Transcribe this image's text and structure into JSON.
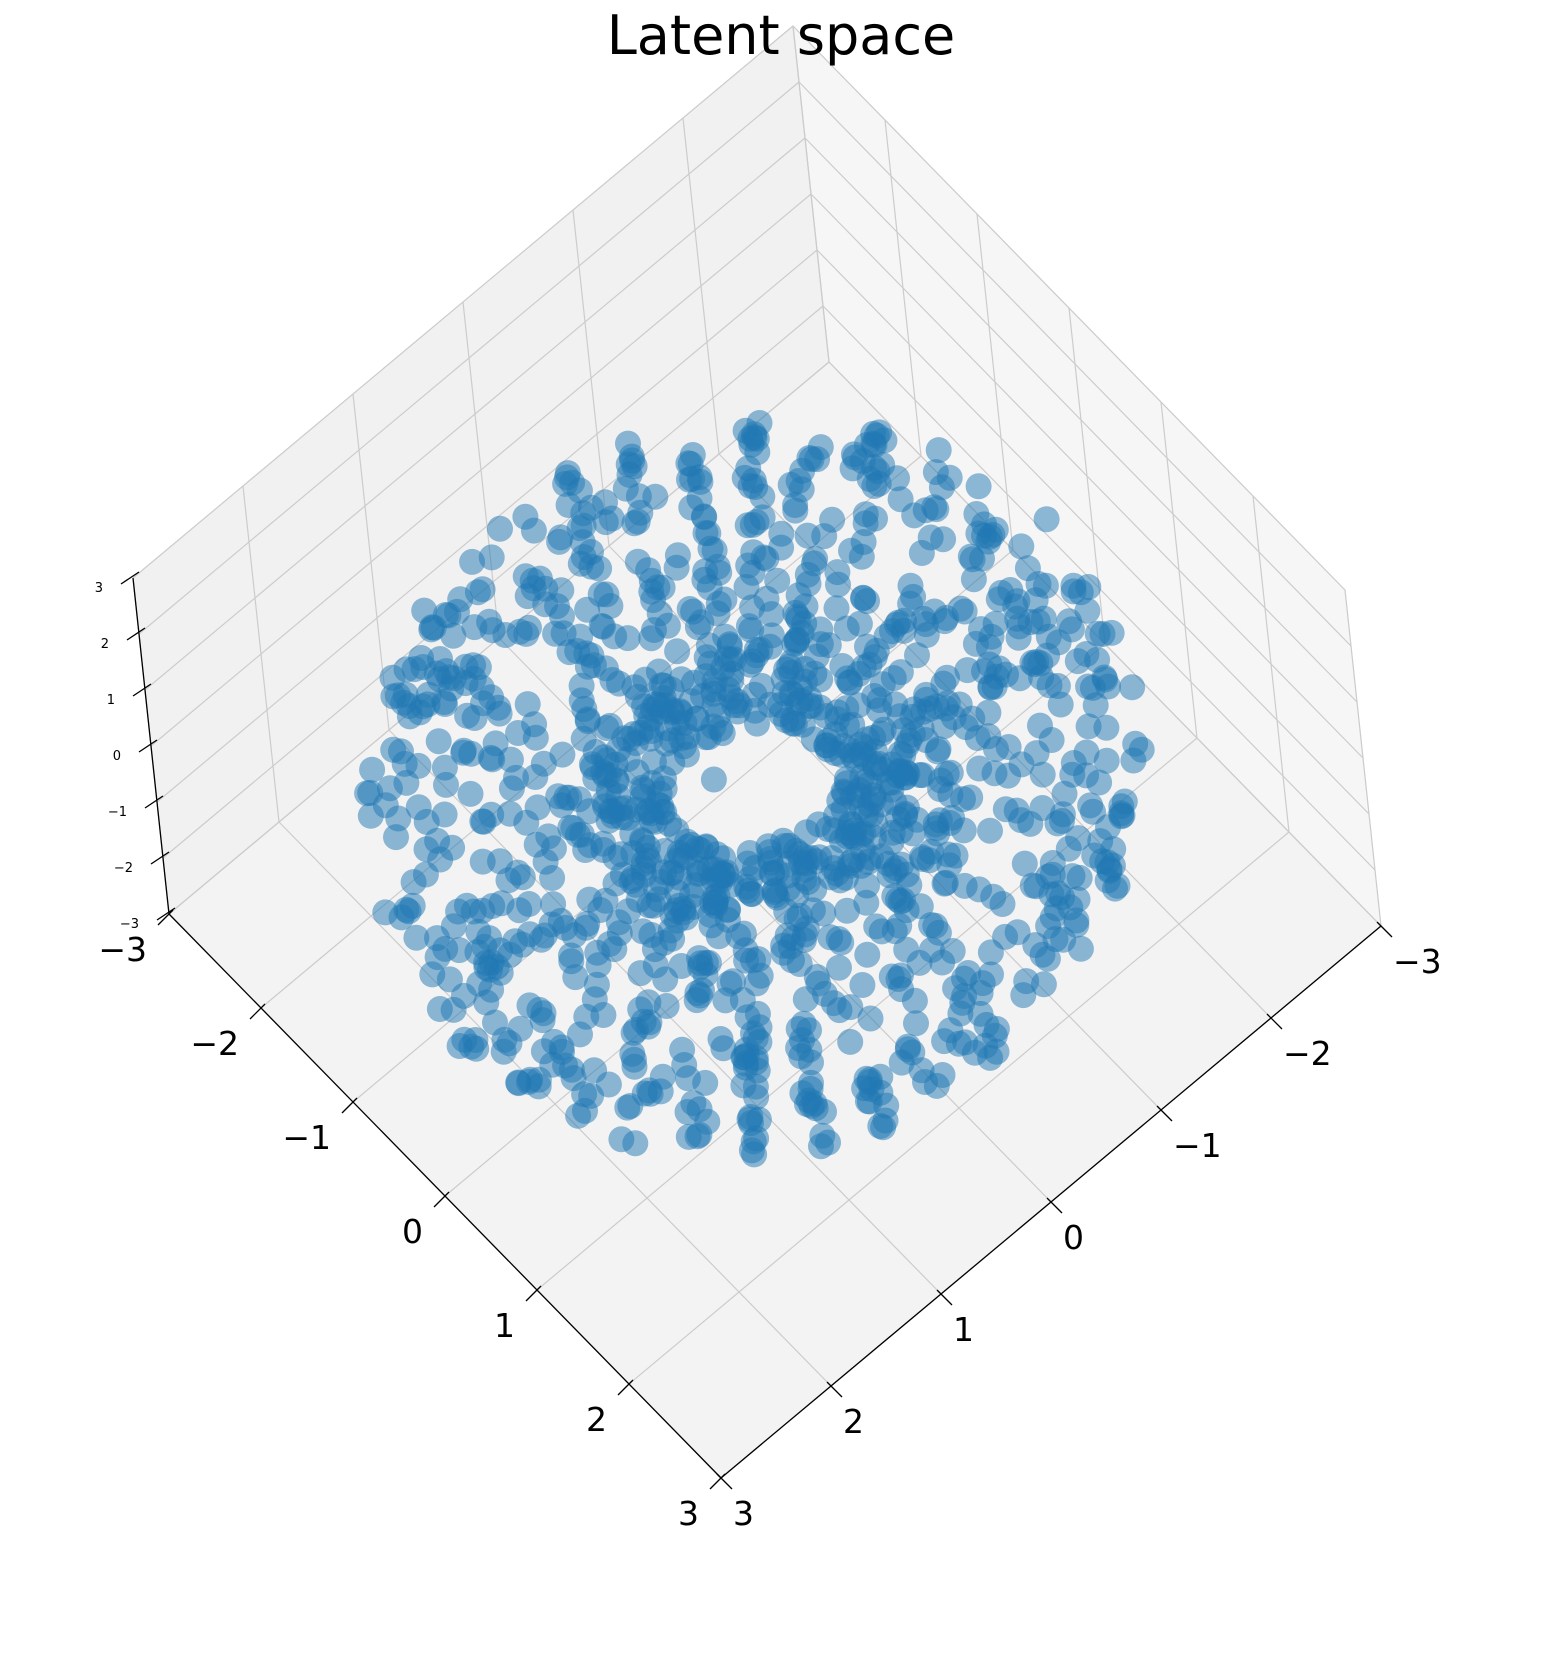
{
  "chart_data": {
    "type": "scatter",
    "projection": "3d",
    "title": "Latent space",
    "marker_color": "#1f77b4",
    "marker_alpha": 0.5,
    "grid": true,
    "pane_color": "#f2f2f2",
    "xlim": [
      -3,
      3
    ],
    "ylim": [
      -3,
      3
    ],
    "zlim": [
      -3,
      3
    ],
    "x_ticks": [
      "−3",
      "−2",
      "−1",
      "0",
      "1",
      "2",
      "3"
    ],
    "y_ticks": [
      "−3",
      "−2",
      "−1",
      "0",
      "1",
      "2",
      "3"
    ],
    "z_ticks": [
      "−3",
      "−2",
      "−1",
      "0",
      "1",
      "2",
      "3"
    ],
    "x_tick_values": [
      -3,
      -2,
      -1,
      0,
      1,
      2,
      3
    ],
    "y_tick_values": [
      -3,
      -2,
      -1,
      0,
      1,
      2,
      3
    ],
    "z_tick_values": [
      -3,
      -2,
      -1,
      0,
      1,
      2,
      3
    ],
    "torus": {
      "major_radius": 1.65,
      "minor_radius_min": 0.6,
      "minor_radius_max": 1.2,
      "center": [
        0.18,
        0.18
      ],
      "n_points": 1300,
      "n_spokes": 36
    },
    "outliers": [
      [
        -0.05,
        0.35
      ]
    ]
  }
}
